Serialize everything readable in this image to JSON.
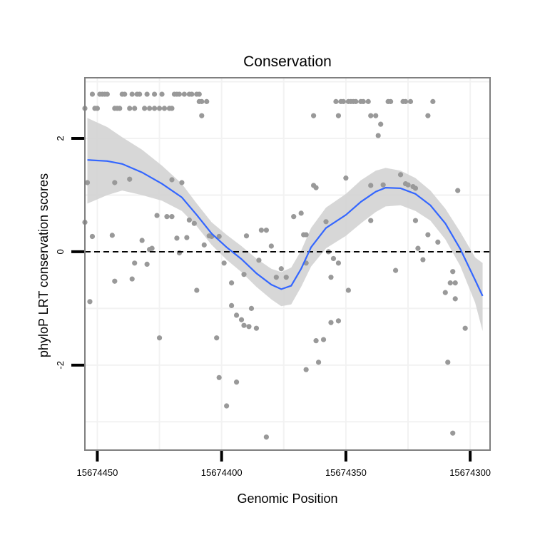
{
  "chart_data": {
    "type": "scatter",
    "title": "Conservation",
    "xlabel": "Genomic Position",
    "ylabel": "phyloP LRT conservation scores",
    "x_reversed": true,
    "xlim": [
      15674455,
      15674292
    ],
    "ylim": [
      -3.5,
      3.07
    ],
    "x_ticks": [
      15674450,
      15674400,
      15674350,
      15674300
    ],
    "x_tick_labels": [
      "15674450",
      "15674400",
      "15674350",
      "15674300"
    ],
    "y_ticks": [
      -2,
      0,
      2
    ],
    "y_tick_labels": [
      "-2",
      "0",
      "2"
    ],
    "reference_line": {
      "y": 0,
      "style": "dashed",
      "color": "#000000"
    },
    "grid": true,
    "colors": {
      "points": "#999999",
      "smooth_line": "#3366ff",
      "confidence_band": "#d3d3d3",
      "panel_border": "#7f7f7f",
      "grid": "#f2f2f2"
    },
    "series": [
      {
        "name": "phyloP scores",
        "points": [
          [
            15674455,
            2.53
          ],
          [
            15674451,
            2.53
          ],
          [
            15674450,
            2.53
          ],
          [
            15674443,
            2.53
          ],
          [
            15674442,
            2.53
          ],
          [
            15674441,
            2.53
          ],
          [
            15674437,
            2.53
          ],
          [
            15674435,
            2.53
          ],
          [
            15674431,
            2.53
          ],
          [
            15674429,
            2.53
          ],
          [
            15674427,
            2.53
          ],
          [
            15674425,
            2.53
          ],
          [
            15674423,
            2.53
          ],
          [
            15674421,
            2.53
          ],
          [
            15674420,
            2.53
          ],
          [
            15674452,
            2.78
          ],
          [
            15674449,
            2.78
          ],
          [
            15674448,
            2.78
          ],
          [
            15674447,
            2.78
          ],
          [
            15674446,
            2.78
          ],
          [
            15674440,
            2.78
          ],
          [
            15674439,
            2.78
          ],
          [
            15674436,
            2.78
          ],
          [
            15674434,
            2.78
          ],
          [
            15674433,
            2.78
          ],
          [
            15674430,
            2.78
          ],
          [
            15674427,
            2.78
          ],
          [
            15674424,
            2.78
          ],
          [
            15674419,
            2.78
          ],
          [
            15674418,
            2.78
          ],
          [
            15674417,
            2.78
          ],
          [
            15674415,
            2.78
          ],
          [
            15674413,
            2.78
          ],
          [
            15674412,
            2.78
          ],
          [
            15674410,
            2.78
          ],
          [
            15674409,
            2.78
          ],
          [
            15674409,
            2.65
          ],
          [
            15674408,
            2.65
          ],
          [
            15674406,
            2.65
          ],
          [
            15674408,
            2.4
          ],
          [
            15674363,
            2.4
          ],
          [
            15674354,
            2.65
          ],
          [
            15674352,
            2.65
          ],
          [
            15674351,
            2.65
          ],
          [
            15674349,
            2.65
          ],
          [
            15674348,
            2.65
          ],
          [
            15674347,
            2.65
          ],
          [
            15674346,
            2.65
          ],
          [
            15674344,
            2.65
          ],
          [
            15674343,
            2.65
          ],
          [
            15674341,
            2.65
          ],
          [
            15674333,
            2.65
          ],
          [
            15674332,
            2.65
          ],
          [
            15674327,
            2.65
          ],
          [
            15674326,
            2.65
          ],
          [
            15674324,
            2.65
          ],
          [
            15674315,
            2.65
          ],
          [
            15674353,
            2.4
          ],
          [
            15674340,
            2.4
          ],
          [
            15674338,
            2.4
          ],
          [
            15674317,
            2.4
          ],
          [
            15674336,
            2.25
          ],
          [
            15674337,
            2.05
          ],
          [
            15674454,
            1.22
          ],
          [
            15674443,
            1.22
          ],
          [
            15674437,
            1.28
          ],
          [
            15674420,
            1.27
          ],
          [
            15674416,
            1.22
          ],
          [
            15674363,
            1.17
          ],
          [
            15674362,
            1.13
          ],
          [
            15674350,
            1.3
          ],
          [
            15674340,
            1.17
          ],
          [
            15674335,
            1.18
          ],
          [
            15674328,
            1.36
          ],
          [
            15674326,
            1.2
          ],
          [
            15674322,
            1.12
          ],
          [
            15674323,
            1.15
          ],
          [
            15674305,
            1.08
          ],
          [
            15674325,
            1.18
          ],
          [
            15674432,
            0.2
          ],
          [
            15674429,
            0.04
          ],
          [
            15674426,
            0.64
          ],
          [
            15674422,
            0.62
          ],
          [
            15674418,
            0.24
          ],
          [
            15674413,
            0.56
          ],
          [
            15674407,
            0.12
          ],
          [
            15674404,
            0.27
          ],
          [
            15674420,
            0.62
          ],
          [
            15674417,
            -0.02
          ],
          [
            15674411,
            0.5
          ],
          [
            15674455,
            0.52
          ],
          [
            15674452,
            0.27
          ],
          [
            15674444,
            0.29
          ],
          [
            15674453,
            -0.88
          ],
          [
            15674443,
            -0.52
          ],
          [
            15674435,
            -0.2
          ],
          [
            15674436,
            -0.48
          ],
          [
            15674430,
            -0.22
          ],
          [
            15674401,
            0.27
          ],
          [
            15674399,
            -0.2
          ],
          [
            15674396,
            -0.55
          ],
          [
            15674394,
            -1.12
          ],
          [
            15674392,
            -1.2
          ],
          [
            15674391,
            -0.4
          ],
          [
            15674386,
            -1.35
          ],
          [
            15674385,
            -0.15
          ],
          [
            15674384,
            0.38
          ],
          [
            15674382,
            0.38
          ],
          [
            15674380,
            0.1
          ],
          [
            15674378,
            -0.45
          ],
          [
            15674376,
            -0.3
          ],
          [
            15674374,
            -0.45
          ],
          [
            15674371,
            0.62
          ],
          [
            15674368,
            0.68
          ],
          [
            15674367,
            0.3
          ],
          [
            15674366,
            -0.2
          ],
          [
            15674358,
            0.53
          ],
          [
            15674355,
            -0.12
          ],
          [
            15674357,
            0.0
          ],
          [
            15674356,
            -0.45
          ],
          [
            15674353,
            -0.2
          ],
          [
            15674349,
            -0.68
          ],
          [
            15674322,
            0.55
          ],
          [
            15674319,
            -0.14
          ],
          [
            15674317,
            0.3
          ],
          [
            15674313,
            0.17
          ],
          [
            15674308,
            -0.55
          ],
          [
            15674307,
            -0.35
          ],
          [
            15674306,
            -0.55
          ],
          [
            15674425,
            -1.52
          ],
          [
            15674402,
            -1.52
          ],
          [
            15674396,
            -0.95
          ],
          [
            15674401,
            -2.22
          ],
          [
            15674398,
            -2.72
          ],
          [
            15674394,
            -2.3
          ],
          [
            15674391,
            -1.3
          ],
          [
            15674389,
            -1.32
          ],
          [
            15674388,
            -1.0
          ],
          [
            15674382,
            -3.27
          ],
          [
            15674366,
            -2.08
          ],
          [
            15674362,
            -1.57
          ],
          [
            15674361,
            -1.95
          ],
          [
            15674359,
            -1.55
          ],
          [
            15674356,
            -1.25
          ],
          [
            15674353,
            -1.22
          ],
          [
            15674330,
            -0.33
          ],
          [
            15674309,
            -1.95
          ],
          [
            15674310,
            -0.72
          ],
          [
            15674307,
            -3.2
          ],
          [
            15674306,
            -0.83
          ],
          [
            15674302,
            -1.35
          ],
          [
            15674366,
            0.3
          ],
          [
            15674340,
            0.55
          ],
          [
            15674321,
            0.06
          ],
          [
            15674390,
            0.28
          ],
          [
            15674405,
            0.28
          ],
          [
            15674410,
            -0.68
          ],
          [
            15674414,
            0.25
          ],
          [
            15674428,
            0.06
          ]
        ]
      },
      {
        "name": "loess fit",
        "points": [
          [
            15674454,
            1.62
          ],
          [
            15674446,
            1.6
          ],
          [
            15674440,
            1.55
          ],
          [
            15674432,
            1.4
          ],
          [
            15674424,
            1.2
          ],
          [
            15674416,
            0.96
          ],
          [
            15674410,
            0.65
          ],
          [
            15674404,
            0.32
          ],
          [
            15674398,
            0.08
          ],
          [
            15674392,
            -0.13
          ],
          [
            15674386,
            -0.38
          ],
          [
            15674380,
            -0.58
          ],
          [
            15674376,
            -0.66
          ],
          [
            15674372,
            -0.6
          ],
          [
            15674368,
            -0.3
          ],
          [
            15674364,
            0.08
          ],
          [
            15674358,
            0.42
          ],
          [
            15674350,
            0.65
          ],
          [
            15674344,
            0.88
          ],
          [
            15674338,
            1.06
          ],
          [
            15674334,
            1.13
          ],
          [
            15674328,
            1.12
          ],
          [
            15674322,
            1.02
          ],
          [
            15674316,
            0.82
          ],
          [
            15674310,
            0.5
          ],
          [
            15674304,
            0.05
          ],
          [
            15674298,
            -0.5
          ],
          [
            15674295,
            -0.78
          ]
        ]
      }
    ],
    "confidence_band": {
      "x": [
        15674454,
        15674446,
        15674440,
        15674432,
        15674424,
        15674416,
        15674410,
        15674404,
        15674398,
        15674392,
        15674386,
        15674380,
        15674376,
        15674372,
        15674368,
        15674364,
        15674358,
        15674350,
        15674344,
        15674338,
        15674334,
        15674328,
        15674322,
        15674316,
        15674310,
        15674304,
        15674298,
        15674295
      ],
      "upper": [
        2.36,
        2.2,
        2.02,
        1.8,
        1.52,
        1.2,
        0.85,
        0.52,
        0.3,
        0.1,
        -0.12,
        -0.3,
        -0.36,
        -0.28,
        0.02,
        0.42,
        0.78,
        1.02,
        1.26,
        1.43,
        1.48,
        1.43,
        1.3,
        1.08,
        0.76,
        0.35,
        -0.1,
        -0.2
      ],
      "lower": [
        0.85,
        1.0,
        1.08,
        1.0,
        0.9,
        0.72,
        0.45,
        0.12,
        -0.14,
        -0.36,
        -0.62,
        -0.84,
        -0.96,
        -0.93,
        -0.62,
        -0.26,
        0.06,
        0.28,
        0.5,
        0.7,
        0.8,
        0.82,
        0.72,
        0.55,
        0.22,
        -0.25,
        -0.9,
        -1.4
      ]
    }
  }
}
